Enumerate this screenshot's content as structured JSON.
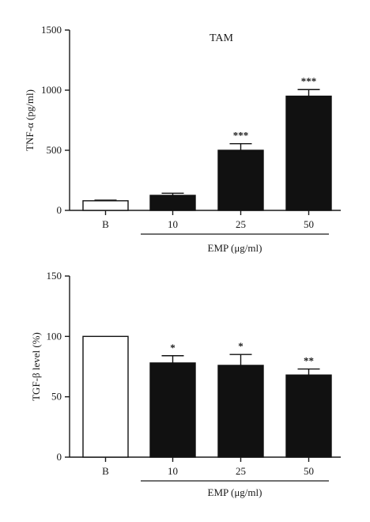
{
  "chart_data": [
    {
      "type": "bar",
      "title": "TAM",
      "ylabel": "TNF-α (pg/ml)",
      "ylim": [
        0,
        1500
      ],
      "yticks": [
        0,
        500,
        1000,
        1500
      ],
      "categories": [
        "B",
        "10",
        "25",
        "50"
      ],
      "values": [
        80,
        125,
        500,
        950
      ],
      "errors": [
        5,
        18,
        55,
        55
      ],
      "significance": [
        "",
        "",
        "***",
        "***"
      ],
      "bar_colors": [
        "#ffffff",
        "#111111",
        "#111111",
        "#111111"
      ],
      "group_label": "EMP (μg/ml)"
    },
    {
      "type": "bar",
      "title": "",
      "ylabel": "TGF-β level (%)",
      "ylim": [
        0,
        150
      ],
      "yticks": [
        0,
        50,
        100,
        150
      ],
      "categories": [
        "B",
        "10",
        "25",
        "50"
      ],
      "values": [
        100,
        78,
        76,
        68
      ],
      "errors": [
        0,
        6,
        9,
        5
      ],
      "significance": [
        "",
        "*",
        "*",
        "**"
      ],
      "bar_colors": [
        "#ffffff",
        "#111111",
        "#111111",
        "#111111"
      ],
      "group_label": "EMP (μg/ml)"
    }
  ]
}
